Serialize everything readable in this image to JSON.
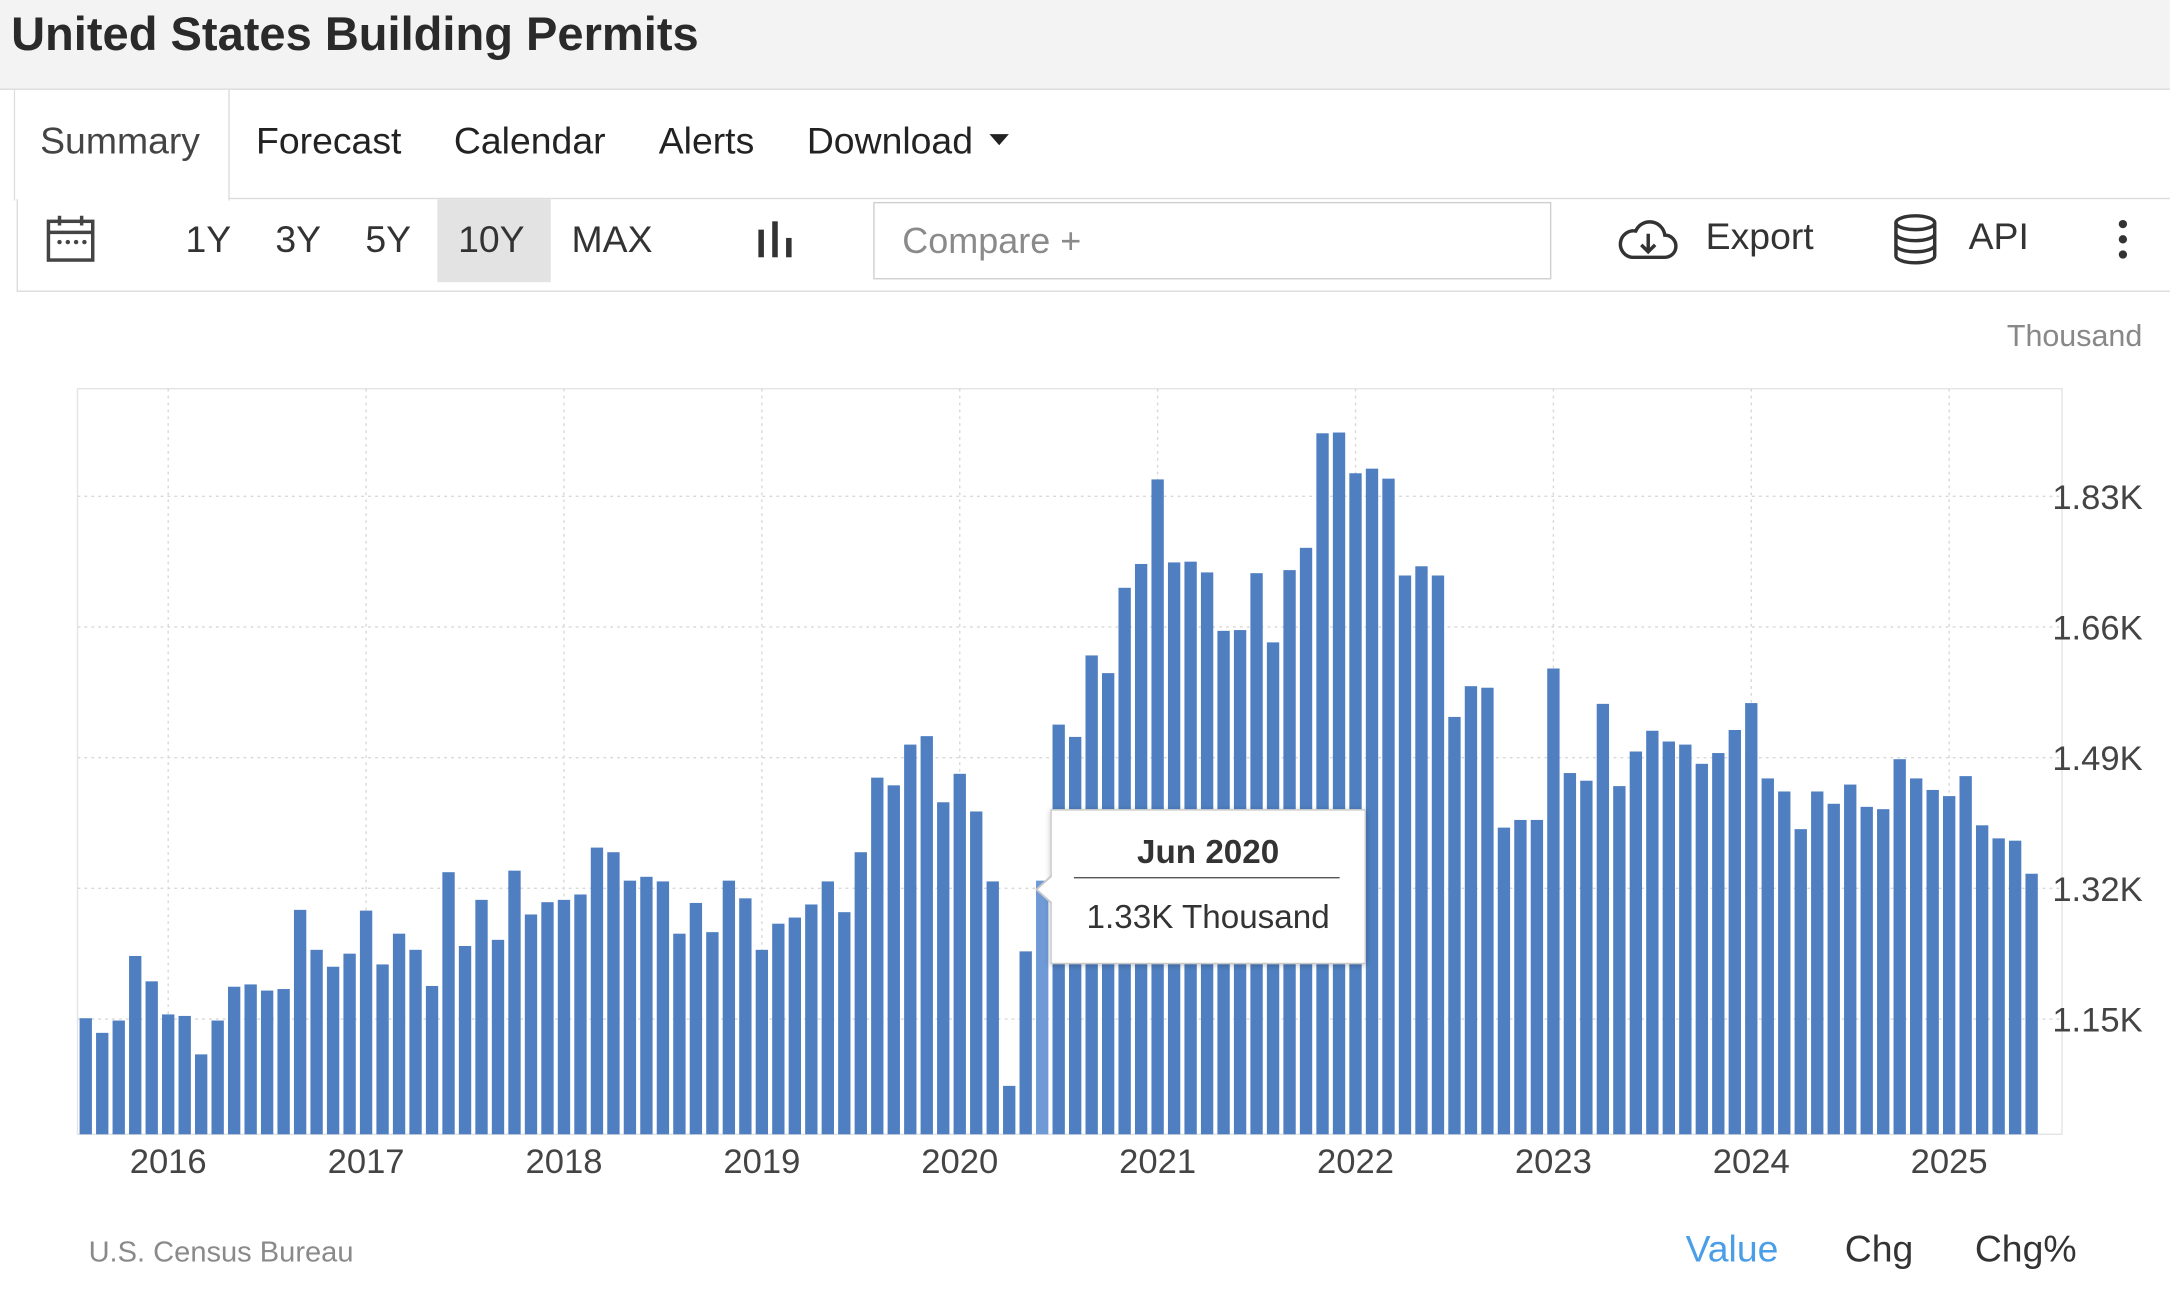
{
  "header": {
    "title": "United States Building Permits"
  },
  "tabs": [
    {
      "label": "Summary"
    },
    {
      "label": "Forecast"
    },
    {
      "label": "Calendar"
    },
    {
      "label": "Alerts"
    },
    {
      "label": "Download"
    }
  ],
  "toolbar": {
    "ranges": [
      "1Y",
      "3Y",
      "5Y",
      "10Y",
      "MAX"
    ],
    "active_range": "10Y",
    "compare_placeholder": "Compare +",
    "export_label": "Export",
    "api_label": "API"
  },
  "unit_label": "Thousand",
  "source": "U.S. Census Bureau",
  "value_tabs": [
    "Value",
    "Chg",
    "Chg%"
  ],
  "active_value_tab": "Value",
  "tooltip": {
    "date": "Jun 2020",
    "value": "1.33K Thousand"
  },
  "colors": {
    "bar": "#4f7fc1",
    "bar_highlight": "#6f9ad6",
    "accent": "#4a9ee8"
  },
  "chart_data": {
    "type": "bar",
    "y_tick_labels": [
      "1.15K",
      "1.32K",
      "1.49K",
      "1.66K",
      "1.83K"
    ],
    "y_ticks": [
      1150,
      1320,
      1490,
      1660,
      1830
    ],
    "ylim": [
      1000,
      1970
    ],
    "x_tick_labels": [
      "2016",
      "2017",
      "2018",
      "2019",
      "2020",
      "2021",
      "2022",
      "2023",
      "2024",
      "2025"
    ],
    "x_start": "Aug 2015",
    "highlight": "Jun 2020",
    "grid": true,
    "series": [
      {
        "values": [
          1151,
          1132,
          1148,
          1232,
          1199,
          1156,
          1154,
          1104,
          1148,
          1192,
          1195,
          1187,
          1189,
          1292,
          1240,
          1218,
          1235,
          1291,
          1221,
          1261,
          1240,
          1193,
          1341,
          1245,
          1305,
          1253,
          1343,
          1286,
          1302,
          1305,
          1312,
          1373,
          1367,
          1330,
          1335,
          1329,
          1261,
          1301,
          1263,
          1330,
          1307,
          1240,
          1274,
          1282,
          1299,
          1329,
          1289,
          1367,
          1464,
          1454,
          1507,
          1518,
          1432,
          1469,
          1420,
          1329,
          1063,
          1238,
          1330,
          1533,
          1517,
          1623,
          1600,
          1711,
          1742,
          1852,
          1744,
          1745,
          1731,
          1655,
          1656,
          1730,
          1640,
          1734,
          1763,
          1912,
          1913,
          1860,
          1866,
          1853,
          1727,
          1739,
          1727,
          1543,
          1583,
          1581,
          1399,
          1409,
          1409,
          1606,
          1470,
          1460,
          1560,
          1453,
          1498,
          1525,
          1511,
          1507,
          1482,
          1496,
          1526,
          1561,
          1463,
          1446,
          1397,
          1446,
          1430,
          1455,
          1426,
          1423,
          1488,
          1463,
          1448,
          1440,
          1466,
          1402,
          1385,
          1382,
          1339
        ]
      }
    ]
  }
}
